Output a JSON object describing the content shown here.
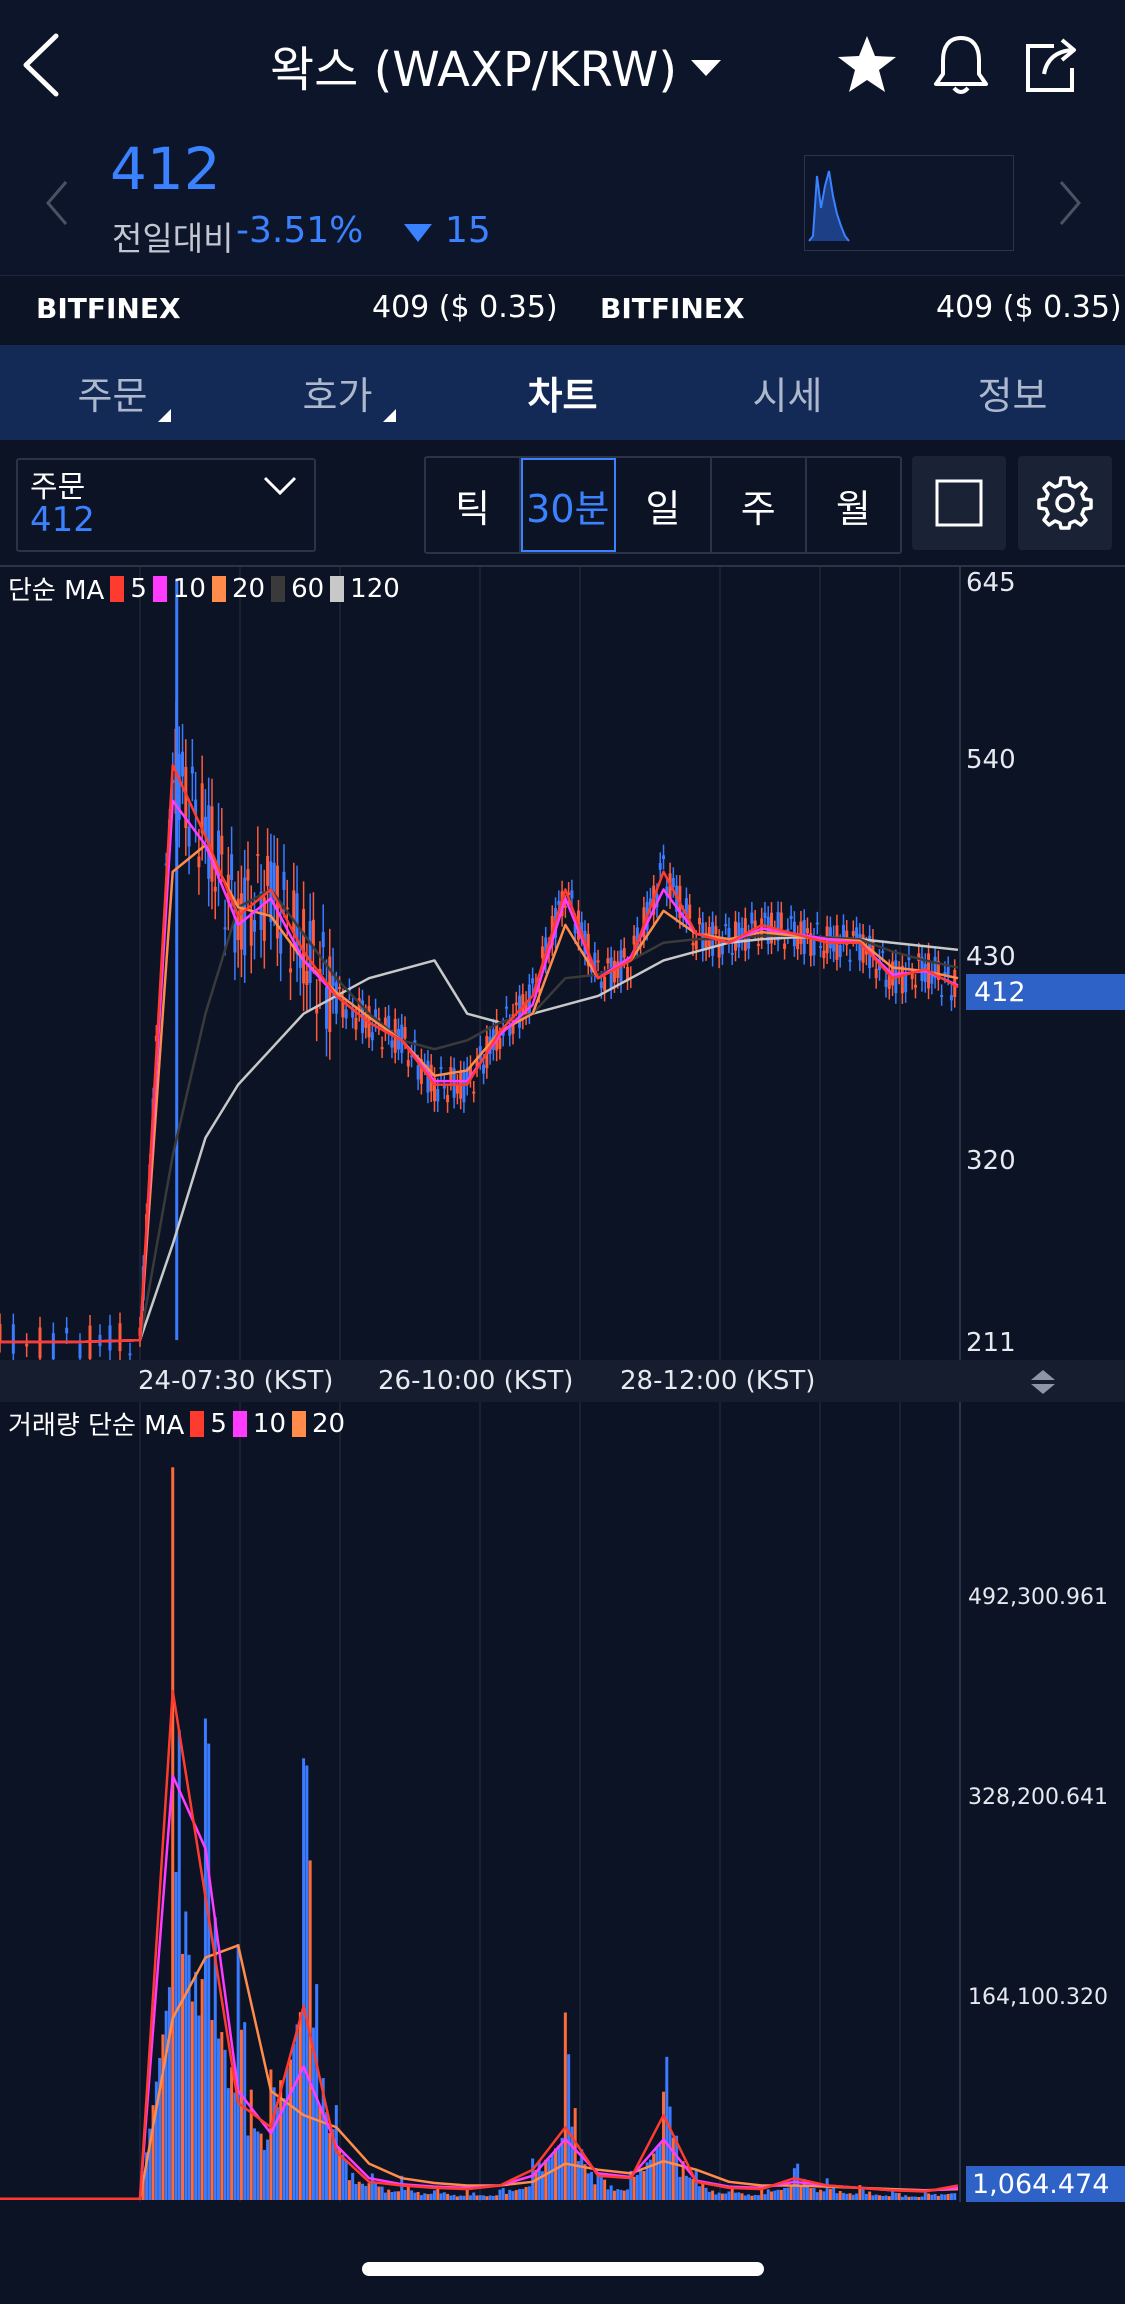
{
  "header": {
    "title": "왁스 (WAXP/KRW)",
    "icons": [
      "back-icon",
      "caret-down-icon",
      "star-icon",
      "bell-icon",
      "share-icon"
    ]
  },
  "ticker": {
    "price": "412",
    "change_label": "전일대비",
    "change_pct": "-3.51%",
    "change_abs": "15",
    "price_color": "#3a82ff"
  },
  "exchanges": [
    {
      "name": "BITFINEX",
      "value": "409 ($ 0.35)"
    },
    {
      "name": "BITFINEX",
      "value": "409 ($ 0.35)"
    }
  ],
  "tabs": [
    {
      "label": "주문",
      "active": false
    },
    {
      "label": "호가",
      "active": false
    },
    {
      "label": "차트",
      "active": true
    },
    {
      "label": "시세",
      "active": false
    },
    {
      "label": "정보",
      "active": false
    }
  ],
  "toolbar": {
    "order_label": "주문",
    "order_value": "412",
    "periods": [
      {
        "label": "틱",
        "active": false
      },
      {
        "label": "30분",
        "active": true
      },
      {
        "label": "일",
        "active": false
      },
      {
        "label": "주",
        "active": false
      },
      {
        "label": "월",
        "active": false
      }
    ]
  },
  "price_legend": {
    "prefix": "단순 MA",
    "items": [
      {
        "label": "5",
        "color": "#ff3b30"
      },
      {
        "label": "10",
        "color": "#ff3bff"
      },
      {
        "label": "20",
        "color": "#ff8c4a"
      },
      {
        "label": "60",
        "color": "#3a3a3a"
      },
      {
        "label": "120",
        "color": "#c8c8c8"
      }
    ]
  },
  "volume_legend": {
    "prefix": "거래량 단순 MA",
    "items": [
      {
        "label": "5",
        "color": "#ff3b30"
      },
      {
        "label": "10",
        "color": "#ff3bff"
      },
      {
        "label": "20",
        "color": "#ff8c4a"
      }
    ]
  },
  "price_axis": [
    "645",
    "540",
    "430",
    "320",
    "211"
  ],
  "price_current": "412",
  "time_axis": [
    "24-07:30 (KST)",
    "26-10:00 (KST)",
    "28-12:00 (KST)"
  ],
  "volume_axis": [
    "492,300.961",
    "328,200.641",
    "164,100.320"
  ],
  "volume_current": "1,064.474",
  "chart_data": [
    {
      "type": "line",
      "title": "",
      "ylim": [
        211,
        645
      ],
      "x_ticks": [
        "24-07:30 (KST)",
        "26-10:00 (KST)",
        "28-12:00 (KST)"
      ],
      "y_ticks": [
        645,
        540,
        430,
        320,
        211
      ],
      "current_value": 412,
      "series": [
        {
          "name": "5",
          "values": [
            215,
            215,
            216,
            540,
            500,
            455,
            470,
            435,
            410,
            395,
            385,
            360,
            360,
            390,
            410,
            470,
            420,
            430,
            480,
            445,
            440,
            450,
            445,
            440,
            440,
            420,
            425,
            415
          ]
        },
        {
          "name": "10",
          "values": [
            215,
            215,
            216,
            520,
            495,
            450,
            465,
            430,
            410,
            395,
            385,
            362,
            362,
            388,
            405,
            465,
            420,
            432,
            470,
            445,
            440,
            448,
            445,
            442,
            440,
            422,
            424,
            416
          ]
        },
        {
          "name": "20",
          "values": [
            215,
            215,
            216,
            480,
            495,
            460,
            455,
            430,
            412,
            398,
            385,
            365,
            368,
            390,
            400,
            450,
            420,
            430,
            458,
            445,
            442,
            446,
            444,
            442,
            441,
            426,
            424,
            420
          ]
        },
        {
          "name": "60",
          "values": [
            215,
            215,
            216,
            320,
            400,
            460,
            470,
            445,
            420,
            400,
            385,
            380,
            385,
            395,
            400,
            420,
            422,
            430,
            440,
            442,
            442,
            444,
            444,
            443,
            442,
            435,
            430,
            426
          ]
        },
        {
          "name": "120",
          "values": [
            215,
            215,
            216,
            270,
            330,
            360,
            380,
            400,
            410,
            420,
            425,
            430,
            400,
            395,
            400,
            405,
            410,
            420,
            430,
            435,
            440,
            442,
            443,
            443,
            442,
            440,
            438,
            436
          ]
        }
      ]
    },
    {
      "type": "bar",
      "title": "",
      "ylim": [
        0,
        650000
      ],
      "y_ticks": [
        492300.961,
        328200.641,
        164100.32
      ],
      "current_value": 1064.474,
      "values": [
        1000,
        1000,
        1000,
        650000,
        520000,
        260000,
        120000,
        560000,
        80000,
        30000,
        20000,
        15000,
        10000,
        12000,
        40000,
        180000,
        30000,
        25000,
        170000,
        25000,
        15000,
        12000,
        40000,
        20000,
        15000,
        10000,
        8000,
        20000
      ],
      "series": [
        {
          "name": "5",
          "values": [
            1000,
            1000,
            1000,
            420000,
            250000,
            80000,
            60000,
            160000,
            40000,
            15000,
            12000,
            10000,
            9000,
            12000,
            25000,
            60000,
            20000,
            18000,
            70000,
            15000,
            10000,
            9000,
            18000,
            12000,
            10000,
            8000,
            7000,
            12000
          ]
        },
        {
          "name": "10",
          "values": [
            1000,
            1000,
            1000,
            350000,
            290000,
            90000,
            55000,
            110000,
            45000,
            18000,
            13000,
            11000,
            10000,
            12000,
            20000,
            50000,
            22000,
            19000,
            50000,
            16000,
            11000,
            10000,
            15000,
            12000,
            10000,
            8000,
            7500,
            10000
          ]
        },
        {
          "name": "20",
          "values": [
            1000,
            1000,
            1000,
            150000,
            200000,
            210000,
            90000,
            70000,
            60000,
            30000,
            18000,
            14000,
            12000,
            12000,
            15000,
            30000,
            25000,
            22000,
            32000,
            25000,
            15000,
            12000,
            12000,
            11000,
            10000,
            9000,
            8000,
            9000
          ]
        }
      ]
    }
  ]
}
